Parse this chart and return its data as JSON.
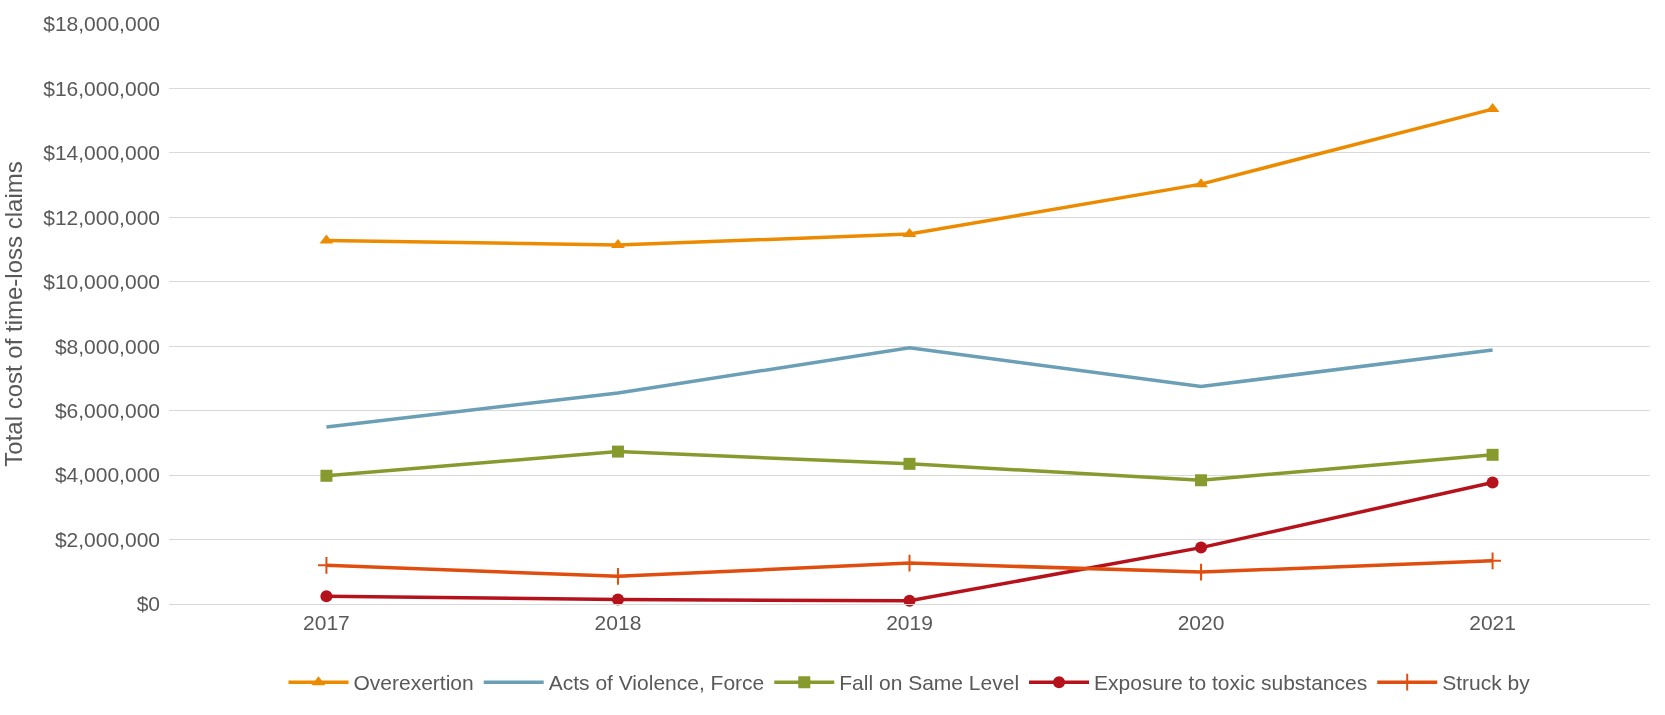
{
  "chart_data": {
    "type": "line",
    "ylabel": "Total cost of time-loss claims",
    "categories": [
      "2017",
      "2018",
      "2019",
      "2020",
      "2021"
    ],
    "series": [
      {
        "name": "Overexertion",
        "color": "#ed8b00",
        "marker": "triangle",
        "values": [
          11280000,
          11140000,
          11480000,
          13030000,
          15360000
        ]
      },
      {
        "name": "Acts of Violence, Force",
        "color": "#6a9fb5",
        "marker": "none",
        "values": [
          5490000,
          6550000,
          7950000,
          6750000,
          7880000
        ]
      },
      {
        "name": "Fall on Same Level",
        "color": "#879a2e",
        "marker": "square",
        "values": [
          3980000,
          4730000,
          4350000,
          3840000,
          4630000
        ]
      },
      {
        "name": "Exposure to toxic substances",
        "color": "#b5121b",
        "marker": "circle",
        "values": [
          240000,
          140000,
          100000,
          1750000,
          3770000
        ]
      },
      {
        "name": "Struck by",
        "color": "#e04e0f",
        "marker": "cross",
        "values": [
          1200000,
          860000,
          1270000,
          990000,
          1340000
        ]
      }
    ],
    "ylim": [
      0,
      18000000
    ],
    "yticks": [
      {
        "value": 0,
        "label": "$0"
      },
      {
        "value": 2000000,
        "label": "$2,000,000"
      },
      {
        "value": 4000000,
        "label": "$4,000,000"
      },
      {
        "value": 6000000,
        "label": "$6,000,000"
      },
      {
        "value": 8000000,
        "label": "$8,000,000"
      },
      {
        "value": 10000000,
        "label": "$10,000,000"
      },
      {
        "value": 12000000,
        "label": "$12,000,000"
      },
      {
        "value": 14000000,
        "label": "$14,000,000"
      },
      {
        "value": 16000000,
        "label": "$16,000,000"
      },
      {
        "value": 18000000,
        "label": "$18,000,000"
      }
    ],
    "grid": "y",
    "legend": "bottom",
    "line_style": "solid"
  }
}
